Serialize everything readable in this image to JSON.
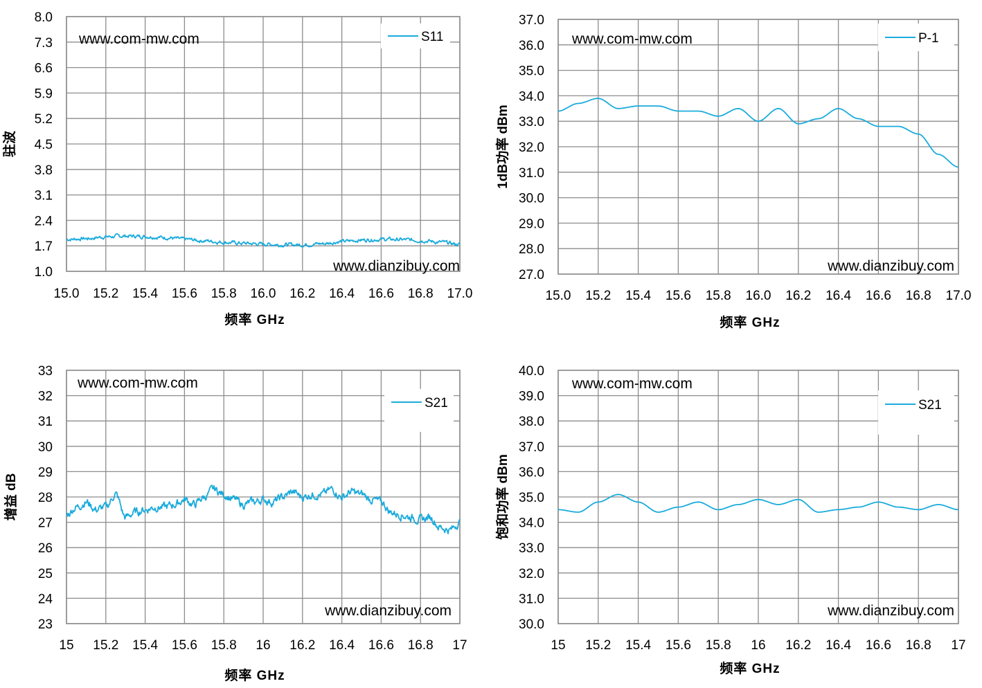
{
  "colors": {
    "series": "#1aabdc",
    "grid": "#8c8c8c",
    "axis": "#8c8c8c",
    "text": "#000000"
  },
  "chart_data": [
    {
      "type": "line",
      "ylabel": "驻波",
      "xlabel": "频率 GHz",
      "xlim": [
        15.0,
        17.0
      ],
      "ylim": [
        1.0,
        8.0
      ],
      "x_tick_labels": [
        "15.0",
        "15.2",
        "15.4",
        "15.6",
        "15.8",
        "16.0",
        "16.2",
        "16.4",
        "16.6",
        "16.8",
        "17.0"
      ],
      "y_tick_labels": [
        "1.0",
        "1.7",
        "2.4",
        "3.1",
        "3.8",
        "4.5",
        "5.2",
        "5.9",
        "6.6",
        "7.3",
        "8.0"
      ],
      "watermark_top": "www.com-mw.com",
      "watermark_bottom": "www.dianzibuy.com",
      "legend": {
        "position": "top-right"
      },
      "series": [
        {
          "name": "S11",
          "noise": 0.05,
          "x": [
            15.0,
            15.1,
            15.2,
            15.3,
            15.4,
            15.5,
            15.6,
            15.7,
            15.8,
            15.9,
            16.0,
            16.1,
            16.2,
            16.3,
            16.4,
            16.5,
            16.6,
            16.7,
            16.8,
            16.9,
            17.0
          ],
          "y": [
            1.88,
            1.9,
            1.95,
            1.97,
            1.96,
            1.93,
            1.88,
            1.84,
            1.8,
            1.77,
            1.75,
            1.73,
            1.73,
            1.76,
            1.82,
            1.86,
            1.88,
            1.87,
            1.85,
            1.8,
            1.74
          ]
        }
      ]
    },
    {
      "type": "line",
      "ylabel": "1dB功率 dBm",
      "xlabel": "频率 GHz",
      "xlim": [
        15.0,
        17.0
      ],
      "ylim": [
        27.0,
        37.0
      ],
      "x_tick_labels": [
        "15.0",
        "15.2",
        "15.4",
        "15.6",
        "15.8",
        "16.0",
        "16.2",
        "16.4",
        "16.6",
        "16.8",
        "17.0"
      ],
      "y_tick_labels": [
        "27.0",
        "28.0",
        "29.0",
        "30.0",
        "31.0",
        "32.0",
        "33.0",
        "34.0",
        "35.0",
        "36.0",
        "37.0"
      ],
      "watermark_top": "www.com-mw.com",
      "watermark_bottom": "www.dianzibuy.com",
      "legend": {
        "position": "top-right"
      },
      "series": [
        {
          "name": "P-1",
          "noise": 0,
          "x": [
            15.0,
            15.1,
            15.2,
            15.3,
            15.4,
            15.5,
            15.6,
            15.7,
            15.8,
            15.9,
            16.0,
            16.1,
            16.2,
            16.3,
            16.4,
            16.5,
            16.6,
            16.7,
            16.8,
            16.9,
            17.0
          ],
          "y": [
            33.4,
            33.7,
            33.9,
            33.5,
            33.6,
            33.6,
            33.4,
            33.4,
            33.2,
            33.5,
            33.0,
            33.5,
            32.9,
            33.1,
            33.5,
            33.1,
            32.8,
            32.8,
            32.5,
            31.7,
            31.2
          ]
        }
      ]
    },
    {
      "type": "line",
      "ylabel": "增益 dB",
      "xlabel": "频率 GHz",
      "xlim": [
        15.0,
        17.0
      ],
      "ylim": [
        23,
        33
      ],
      "x_tick_labels": [
        "15",
        "15.2",
        "15.4",
        "15.6",
        "15.8",
        "16",
        "16.2",
        "16.4",
        "16.6",
        "16.8",
        "17"
      ],
      "y_tick_labels": [
        "23",
        "24",
        "25",
        "26",
        "27",
        "28",
        "29",
        "30",
        "31",
        "32",
        "33"
      ],
      "watermark_top": "www.com-mw.com",
      "watermark_bottom": "www.dianzibuy.com",
      "legend": {
        "position": "top-right"
      },
      "series": [
        {
          "name": "S21",
          "noise": 0.16,
          "x": [
            15.0,
            15.05,
            15.1,
            15.15,
            15.2,
            15.25,
            15.3,
            15.35,
            15.4,
            15.45,
            15.5,
            15.55,
            15.6,
            15.65,
            15.7,
            15.75,
            15.8,
            15.85,
            15.9,
            15.95,
            16.0,
            16.05,
            16.1,
            16.15,
            16.2,
            16.25,
            16.3,
            16.35,
            16.4,
            16.45,
            16.5,
            16.55,
            16.6,
            16.65,
            16.7,
            16.75,
            16.8,
            16.85,
            16.9,
            16.95,
            17.0
          ],
          "y": [
            27.3,
            27.6,
            27.8,
            27.5,
            27.6,
            28.1,
            27.2,
            27.4,
            27.5,
            27.6,
            27.6,
            27.7,
            27.9,
            27.7,
            28.0,
            28.3,
            28.1,
            27.9,
            27.7,
            27.8,
            27.9,
            27.8,
            28.0,
            28.2,
            28.0,
            28.1,
            28.1,
            28.3,
            28.0,
            28.2,
            28.1,
            27.9,
            27.8,
            27.4,
            27.3,
            27.2,
            27.1,
            27.2,
            26.8,
            26.7,
            27.0
          ]
        }
      ]
    },
    {
      "type": "line",
      "ylabel": "饱和功率 dBm",
      "xlabel": "频率 GHz",
      "xlim": [
        15.0,
        17.0
      ],
      "ylim": [
        30.0,
        40.0
      ],
      "x_tick_labels": [
        "15",
        "15.2",
        "15.4",
        "15.6",
        "15.8",
        "16",
        "16.2",
        "16.4",
        "16.6",
        "16.8",
        "17"
      ],
      "y_tick_labels": [
        "30.0",
        "31.0",
        "32.0",
        "33.0",
        "34.0",
        "35.0",
        "36.0",
        "37.0",
        "38.0",
        "39.0",
        "40.0"
      ],
      "watermark_top": "www.com-mw.com",
      "watermark_bottom": "www.dianzibuy.com",
      "legend": {
        "position": "top-right"
      },
      "series": [
        {
          "name": "S21",
          "noise": 0,
          "x": [
            15.0,
            15.1,
            15.2,
            15.3,
            15.4,
            15.5,
            15.6,
            15.7,
            15.8,
            15.9,
            16.0,
            16.1,
            16.2,
            16.3,
            16.4,
            16.5,
            16.6,
            16.7,
            16.8,
            16.9,
            17.0
          ],
          "y": [
            34.5,
            34.4,
            34.8,
            35.1,
            34.8,
            34.4,
            34.6,
            34.8,
            34.5,
            34.7,
            34.9,
            34.7,
            34.9,
            34.4,
            34.5,
            34.6,
            34.8,
            34.6,
            34.5,
            34.7,
            34.5
          ]
        }
      ]
    }
  ]
}
